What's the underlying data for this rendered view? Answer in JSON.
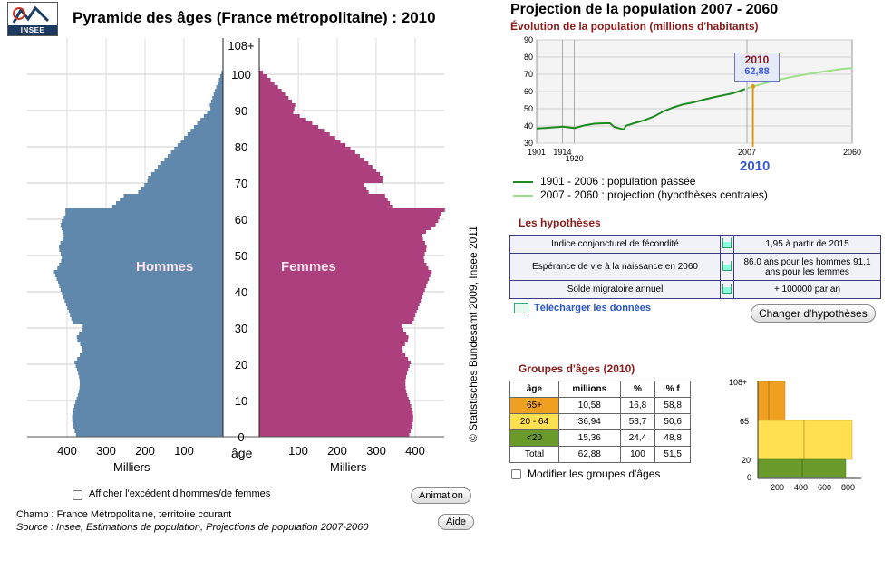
{
  "app": {
    "logo_text": "INSEE",
    "title": "Pyramide des âges (France métropolitaine) : 2010",
    "copyright": "© Statistisches Bundesamt 2009, Insee 2011"
  },
  "colors": {
    "men": "#6088ac",
    "women": "#ad3f7e",
    "past": "#1f8a1f",
    "projection": "#9ee08a",
    "accent_red": "#8b1a1a",
    "highlight_year": "#b8860b",
    "g65": "#f0a020",
    "g20": "#ffe050",
    "g0": "#6a9a2a"
  },
  "pyramid": {
    "label_men": "Hommes",
    "label_women": "Femmes",
    "age_label": "âge",
    "unit_label": "Milliers",
    "age_ticks": [
      "108+",
      "100",
      "90",
      "80",
      "70",
      "60",
      "50",
      "40",
      "30",
      "20",
      "10",
      "0"
    ],
    "men_ticks": [
      "400",
      "300",
      "200",
      "100"
    ],
    "women_ticks": [
      "100",
      "200",
      "300",
      "400"
    ]
  },
  "controls": {
    "excess_checkbox_label": "Afficher l'excédent d'hommes/de femmes",
    "animation_button": "Animation",
    "aide_button": "Aide",
    "champ": "Champ : France Métropolitaine, territoire courant",
    "source": "Source : Insee, Estimations de population, Projections de population 2007-2060"
  },
  "projection": {
    "title": "Projection de la population 2007 - 2060",
    "subtitle": "Évolution de la population (millions d'habitants)",
    "y_ticks": [
      "90",
      "80",
      "70",
      "60",
      "50",
      "40",
      "30"
    ],
    "x_ticks": [
      "1901",
      "1914",
      "1920",
      "2007",
      "2060"
    ],
    "highlight_year": "2010",
    "highlight_value": "62,88",
    "legend_past": "1901 - 2006 : population passée",
    "legend_projection": "2007 - 2060 : projection (hypothèses centrales)"
  },
  "chart_data": {
    "type": "line",
    "title": "Évolution de la population (millions d'habitants)",
    "xlabel": "",
    "ylabel": "",
    "ylim": [
      30,
      90
    ],
    "xlim": [
      1901,
      2060
    ],
    "grid": true,
    "series": [
      {
        "name": "1901 - 2006 : population passée",
        "x": [
          1901,
          1905,
          1910,
          1913,
          1914,
          1920,
          1925,
          1930,
          1935,
          1938,
          1940,
          1943,
          1945,
          1946,
          1950,
          1955,
          1960,
          1965,
          1970,
          1975,
          1980,
          1985,
          1990,
          1995,
          2000,
          2006
        ],
        "y": [
          38.5,
          38.8,
          39.2,
          39.5,
          39.6,
          38.8,
          40.3,
          41.3,
          41.6,
          41.6,
          39.5,
          38.5,
          38.0,
          40.1,
          41.6,
          43.2,
          45.4,
          48.5,
          50.8,
          52.6,
          53.7,
          55.2,
          56.6,
          57.8,
          59.0,
          61.4
        ]
      },
      {
        "name": "2007 - 2060 : projection (hypothèses centrales)",
        "x": [
          2007,
          2010,
          2015,
          2020,
          2025,
          2030,
          2035,
          2040,
          2045,
          2050,
          2055,
          2060
        ],
        "y": [
          61.8,
          62.9,
          64.5,
          66.0,
          67.3,
          68.5,
          69.6,
          70.6,
          71.5,
          72.3,
          73.1,
          73.6
        ]
      }
    ]
  },
  "hypotheses": {
    "title": "Les hypothèses",
    "rows": [
      {
        "label": "Indice conjoncturel de fécondité",
        "value": "1,95 à partir de 2015"
      },
      {
        "label": "Espérance de vie à la naissance en 2060",
        "value": "86,0 ans pour les hommes 91,1 ans pour les femmes"
      },
      {
        "label": "Solde migratoire annuel",
        "value": "+ 100000 par an"
      }
    ],
    "download_link": "Télécharger les données",
    "change_button": "Changer d'hypothèses"
  },
  "groups": {
    "title": "Groupes d'âges (2010)",
    "headers": [
      "âge",
      "millions",
      "%",
      "% f"
    ],
    "rows": [
      {
        "age": "65+",
        "millions": "10,58",
        "pct": "16,8",
        "pctf": "58,8"
      },
      {
        "age": "20 - 64",
        "millions": "36,94",
        "pct": "58,7",
        "pctf": "50,6"
      },
      {
        "age": "<20",
        "millions": "15,36",
        "pct": "24,4",
        "pctf": "48,8"
      },
      {
        "age": "Total",
        "millions": "62,88",
        "pct": "100",
        "pctf": "51,5"
      }
    ],
    "modify_checkbox_label": "Modifier les groupes d'âges",
    "mini_y_ticks": [
      "108+",
      "65",
      "20",
      "0"
    ],
    "mini_x_ticks": [
      "200",
      "400",
      "600",
      "800"
    ]
  }
}
